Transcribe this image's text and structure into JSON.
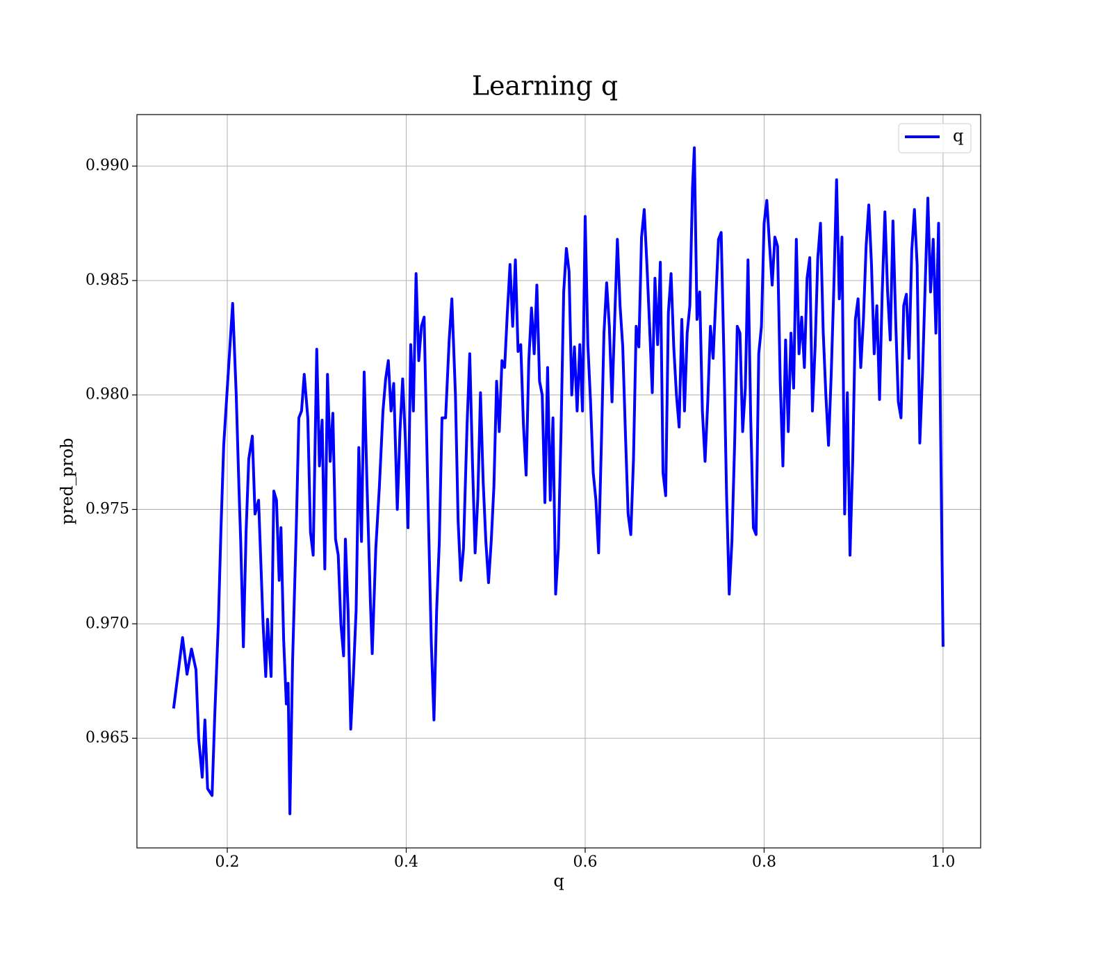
{
  "chart_data": {
    "type": "line",
    "title": "Learning q",
    "xlabel": "q",
    "ylabel": "pred_prob",
    "xlim": [
      0.099,
      1.042
    ],
    "ylim": [
      0.96021,
      0.99225
    ],
    "xticks": [
      0.2,
      0.4,
      0.6,
      0.8,
      {
        "value": 1.0,
        "label": "1.0"
      }
    ],
    "yticks": [
      0.965,
      {
        "value": 0.97,
        "label": "0.970"
      },
      0.975,
      {
        "value": 0.98,
        "label": "0.980"
      },
      0.985,
      {
        "value": 0.99,
        "label": "0.990"
      }
    ],
    "grid": true,
    "legend": "upper right",
    "x": [
      0.14,
      0.15,
      0.155,
      0.16,
      0.165,
      0.168,
      0.172,
      0.175,
      0.178,
      0.183,
      0.186,
      0.19,
      0.193,
      0.196,
      0.2,
      0.206,
      0.21,
      0.213,
      0.215,
      0.218,
      0.221,
      0.224,
      0.228,
      0.231,
      0.235,
      0.24,
      0.243,
      0.245,
      0.249,
      0.252,
      0.255,
      0.258,
      0.26,
      0.263,
      0.266,
      0.268,
      0.27,
      0.273,
      0.277,
      0.28,
      0.283,
      0.286,
      0.29,
      0.293,
      0.296,
      0.3,
      0.303,
      0.306,
      0.309,
      0.312,
      0.315,
      0.318,
      0.321,
      0.324,
      0.327,
      0.33,
      0.332,
      0.335,
      0.338,
      0.341,
      0.344,
      0.347,
      0.35,
      0.353,
      0.356,
      0.36,
      0.362,
      0.366,
      0.37,
      0.374,
      0.377,
      0.38,
      0.383,
      0.386,
      0.39,
      0.393,
      0.396,
      0.399,
      0.402,
      0.405,
      0.408,
      0.411,
      0.414,
      0.417,
      0.42,
      0.424,
      0.428,
      0.431,
      0.434,
      0.437,
      0.44,
      0.444,
      0.448,
      0.451,
      0.455,
      0.458,
      0.461,
      0.464,
      0.468,
      0.471,
      0.474,
      0.477,
      0.48,
      0.483,
      0.486,
      0.489,
      0.492,
      0.495,
      0.498,
      0.501,
      0.504,
      0.507,
      0.51,
      0.513,
      0.516,
      0.519,
      0.522,
      0.525,
      0.528,
      0.531,
      0.534,
      0.537,
      0.54,
      0.543,
      0.546,
      0.549,
      0.552,
      0.555,
      0.558,
      0.561,
      0.564,
      0.567,
      0.57,
      0.573,
      0.576,
      0.579,
      0.582,
      0.585,
      0.588,
      0.591,
      0.594,
      0.597,
      0.6,
      0.603,
      0.606,
      0.609,
      0.612,
      0.615,
      0.618,
      0.621,
      0.624,
      0.627,
      0.63,
      0.633,
      0.636,
      0.639,
      0.642,
      0.645,
      0.648,
      0.651,
      0.654,
      0.657,
      0.66,
      0.663,
      0.666,
      0.669,
      0.672,
      0.675,
      0.678,
      0.681,
      0.684,
      0.687,
      0.69,
      0.693,
      0.696,
      0.699,
      0.702,
      0.705,
      0.708,
      0.711,
      0.714,
      0.717,
      0.72,
      0.722,
      0.725,
      0.728,
      0.731,
      0.734,
      0.737,
      0.74,
      0.743,
      0.746,
      0.749,
      0.752,
      0.755,
      0.758,
      0.761,
      0.764,
      0.767,
      0.77,
      0.773,
      0.776,
      0.779,
      0.782,
      0.785,
      0.788,
      0.791,
      0.794,
      0.797,
      0.8,
      0.803,
      0.806,
      0.809,
      0.812,
      0.815,
      0.818,
      0.821,
      0.824,
      0.827,
      0.83,
      0.833,
      0.836,
      0.839,
      0.842,
      0.845,
      0.848,
      0.851,
      0.854,
      0.857,
      0.86,
      0.863,
      0.866,
      0.869,
      0.872,
      0.875,
      0.878,
      0.881,
      0.884,
      0.887,
      0.89,
      0.893,
      0.896,
      0.899,
      0.902,
      0.905,
      0.908,
      0.911,
      0.914,
      0.917,
      0.92,
      0.923,
      0.926,
      0.929,
      0.932,
      0.935,
      0.938,
      0.941,
      0.944,
      0.947,
      0.95,
      0.953,
      0.956,
      0.959,
      0.962,
      0.965,
      0.968,
      0.971,
      0.974,
      0.977,
      0.98,
      0.983,
      0.986,
      0.989,
      0.992,
      0.995,
      0.997,
      1.0
    ],
    "series": [
      {
        "name": "q",
        "color": "#0000ff",
        "values": [
          0.9663,
          0.9694,
          0.9678,
          0.9689,
          0.968,
          0.965,
          0.9633,
          0.9658,
          0.9628,
          0.9625,
          0.966,
          0.97,
          0.9742,
          0.9778,
          0.9803,
          0.984,
          0.98,
          0.976,
          0.9736,
          0.969,
          0.974,
          0.9772,
          0.9782,
          0.9748,
          0.9754,
          0.97,
          0.9677,
          0.9702,
          0.9677,
          0.9758,
          0.9754,
          0.9719,
          0.9742,
          0.9693,
          0.9665,
          0.9674,
          0.9617,
          0.9684,
          0.974,
          0.979,
          0.9793,
          0.9809,
          0.979,
          0.974,
          0.973,
          0.982,
          0.9769,
          0.9789,
          0.9724,
          0.9809,
          0.9771,
          0.9792,
          0.9737,
          0.973,
          0.97,
          0.9686,
          0.9737,
          0.9706,
          0.9654,
          0.9678,
          0.9706,
          0.9777,
          0.9736,
          0.981,
          0.9763,
          0.9709,
          0.9687,
          0.9733,
          0.976,
          0.9793,
          0.9807,
          0.9815,
          0.9793,
          0.9805,
          0.975,
          0.9784,
          0.9807,
          0.9781,
          0.9742,
          0.9822,
          0.9793,
          0.9853,
          0.9815,
          0.983,
          0.9834,
          0.976,
          0.9692,
          0.9658,
          0.9706,
          0.9736,
          0.979,
          0.979,
          0.9824,
          0.9842,
          0.98,
          0.9745,
          0.9719,
          0.9733,
          0.9787,
          0.9818,
          0.9771,
          0.9731,
          0.9755,
          0.9801,
          0.9762,
          0.9736,
          0.9718,
          0.9736,
          0.976,
          0.9806,
          0.9784,
          0.9815,
          0.9812,
          0.9836,
          0.9857,
          0.983,
          0.9859,
          0.9819,
          0.9822,
          0.9787,
          0.9765,
          0.9815,
          0.9838,
          0.9818,
          0.9848,
          0.9806,
          0.98,
          0.9753,
          0.9812,
          0.9754,
          0.979,
          0.9713,
          0.9733,
          0.9784,
          0.9845,
          0.9864,
          0.9854,
          0.98,
          0.9821,
          0.9793,
          0.9822,
          0.9793,
          0.9878,
          0.9822,
          0.9797,
          0.9766,
          0.9754,
          0.9731,
          0.9777,
          0.9827,
          0.9849,
          0.983,
          0.9797,
          0.9833,
          0.9868,
          0.9839,
          0.9821,
          0.9783,
          0.9748,
          0.9739,
          0.9772,
          0.983,
          0.9821,
          0.9869,
          0.9881,
          0.9857,
          0.983,
          0.9801,
          0.9851,
          0.9822,
          0.9858,
          0.9766,
          0.9756,
          0.9836,
          0.9853,
          0.9821,
          0.98,
          0.9786,
          0.9833,
          0.9793,
          0.9827,
          0.9839,
          0.9891,
          0.9908,
          0.9833,
          0.9845,
          0.9793,
          0.9771,
          0.9797,
          0.983,
          0.9816,
          0.9842,
          0.9868,
          0.9871,
          0.9818,
          0.9757,
          0.9713,
          0.9736,
          0.9778,
          0.983,
          0.9827,
          0.9784,
          0.9803,
          0.9859,
          0.979,
          0.9742,
          0.9739,
          0.9818,
          0.983,
          0.9875,
          0.9885,
          0.9866,
          0.9848,
          0.9869,
          0.9865,
          0.9806,
          0.9769,
          0.9824,
          0.9784,
          0.9827,
          0.9803,
          0.9868,
          0.9818,
          0.9834,
          0.9812,
          0.9851,
          0.986,
          0.9793,
          0.9821,
          0.986,
          0.9875,
          0.9828,
          0.98,
          0.9778,
          0.9809,
          0.9848,
          0.9894,
          0.9842,
          0.9869,
          0.9748,
          0.9801,
          0.973,
          0.9771,
          0.9833,
          0.9842,
          0.9812,
          0.9833,
          0.9865,
          0.9883,
          0.9857,
          0.9818,
          0.9839,
          0.9798,
          0.9845,
          0.988,
          0.9845,
          0.9824,
          0.9876,
          0.9833,
          0.9797,
          0.979,
          0.9839,
          0.9844,
          0.9816,
          0.9863,
          0.9881,
          0.9857,
          0.9779,
          0.9809,
          0.9848,
          0.9886,
          0.9845,
          0.9868,
          0.9827,
          0.9875,
          0.9793,
          0.969
        ]
      }
    ]
  }
}
